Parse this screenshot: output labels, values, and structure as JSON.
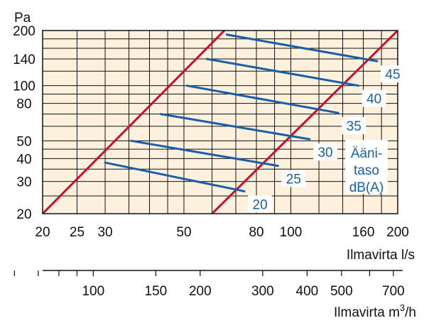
{
  "chart_data": {
    "type": "line",
    "x_scale": "log",
    "y_scale": "log",
    "xlim": [
      20,
      200
    ],
    "ylim": [
      20,
      200
    ],
    "grid": true,
    "y_unit": "Pa",
    "y_ticks": [
      20,
      30,
      40,
      50,
      80,
      100,
      140,
      200
    ],
    "y_grid": [
      20,
      25,
      30,
      35,
      40,
      45,
      50,
      60,
      70,
      80,
      90,
      100,
      120,
      140,
      160,
      180,
      200
    ],
    "x_ticks": [
      20,
      25,
      30,
      50,
      80,
      100,
      160,
      200
    ],
    "x_grid": [
      20,
      25,
      30,
      35,
      40,
      45,
      50,
      60,
      70,
      80,
      90,
      100,
      120,
      140,
      160,
      180,
      200
    ],
    "xlabel": "Ilmavirta l/s",
    "x2_ticks": [
      100,
      150,
      200,
      300,
      400,
      500,
      700
    ],
    "x2_minor": [
      60,
      70,
      80,
      90,
      600
    ],
    "x2label_prefix": "Ilmavirta m",
    "x2label_sup": "3",
    "x2label_suffix": "/h",
    "boundary_series": [
      {
        "x": [
          20,
          65
        ],
        "y": [
          20,
          200
        ]
      },
      {
        "x": [
          60,
          200
        ],
        "y": [
          20,
          200
        ]
      }
    ],
    "series": [
      {
        "name": "20",
        "x": [
          30,
          74
        ],
        "y": [
          38,
          26.5
        ]
      },
      {
        "name": "25",
        "x": [
          35.5,
          92
        ],
        "y": [
          50,
          36.5
        ]
      },
      {
        "name": "30",
        "x": [
          43,
          113
        ],
        "y": [
          70,
          51
        ]
      },
      {
        "name": "35",
        "x": [
          51,
          136
        ],
        "y": [
          100,
          71
        ]
      },
      {
        "name": "40",
        "x": [
          58,
          155
        ],
        "y": [
          140,
          100
        ]
      },
      {
        "name": "45",
        "x": [
          66,
          175
        ],
        "y": [
          190,
          136
        ]
      }
    ],
    "note_lines": [
      "Ääni-",
      "taso",
      "dB(A)"
    ],
    "colors": {
      "plot_background": "#fdf1dd",
      "grid": "#111111",
      "boundary": "#c8102e",
      "series": "#1a5fa6",
      "label_box": "#ffffff"
    }
  }
}
